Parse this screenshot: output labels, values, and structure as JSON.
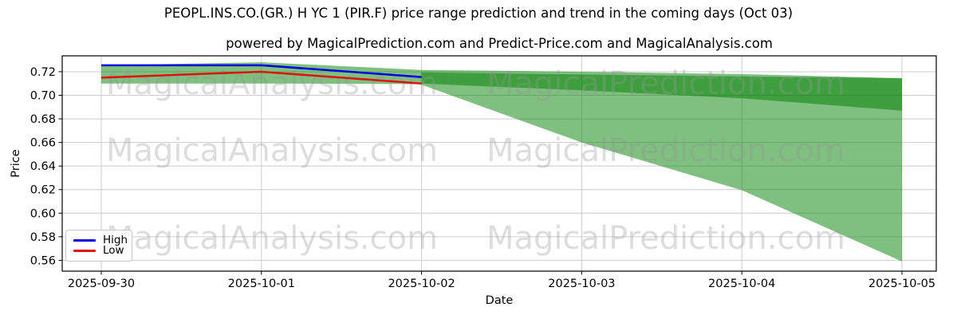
{
  "title": "PEOPL.INS.CO.(GR.) H YC 1 (PIR.F) price range prediction and trend in the coming days (Oct 03)",
  "subtitle": "powered by MagicalPrediction.com and Predict-Price.com and MagicalAnalysis.com",
  "watermarks": {
    "left_text": "MagicalAnalysis.com",
    "right_text": "MagicalPrediction.com"
  },
  "colors": {
    "grid": "#cccccc",
    "frame": "#000000",
    "band_fill": "rgba(0,128,0,0.5)",
    "band_light_result": "#80c080",
    "band_dark_result": "#40a040",
    "high_line": "#0000e0",
    "low_line": "#e01010",
    "watermark": "rgba(150,150,150,0.32)"
  },
  "legend": {
    "items": [
      {
        "label": "High",
        "color": "#0000e0"
      },
      {
        "label": "Low",
        "color": "#e01010"
      }
    ]
  },
  "chart_data": {
    "type": "line",
    "title": "PEOPL.INS.CO.(GR.) H YC 1 (PIR.F) price range prediction and trend in the coming days (Oct 03)",
    "xlabel": "Date",
    "ylabel": "Price",
    "x": [
      "2025-09-30",
      "2025-10-01",
      "2025-10-02",
      "2025-10-03",
      "2025-10-04",
      "2025-10-05"
    ],
    "yticks": [
      0.56,
      0.58,
      0.6,
      0.62,
      0.64,
      0.66,
      0.68,
      0.7,
      0.72
    ],
    "ylim": [
      0.5508,
      0.7335
    ],
    "grid": true,
    "legend_position": "lower left",
    "series": [
      {
        "name": "High",
        "color": "#0000e0",
        "x_indices": [
          0,
          1,
          2
        ],
        "values": [
          0.7255,
          0.7255,
          0.7155
        ]
      },
      {
        "name": "Low",
        "color": "#e01010",
        "x_indices": [
          0,
          1,
          2
        ],
        "values": [
          0.715,
          0.72,
          0.71
        ]
      }
    ],
    "bands": [
      {
        "name": "history-band",
        "x_indices": [
          0,
          1,
          2
        ],
        "top": [
          0.7255,
          0.728,
          0.7215
        ],
        "bottom": [
          0.71,
          0.71,
          0.7095
        ]
      },
      {
        "name": "forecast-outer-band",
        "x_indices": [
          2,
          3,
          4,
          5
        ],
        "top": [
          0.7215,
          0.72,
          0.718,
          0.7145
        ],
        "bottom": [
          0.709,
          0.66,
          0.6195,
          0.559
        ]
      },
      {
        "name": "forecast-inner-band",
        "x_indices": [
          2,
          3,
          4,
          5
        ],
        "top": [
          0.7195,
          0.7177,
          0.716,
          0.7145
        ],
        "bottom": [
          0.71,
          0.7042,
          0.6975,
          0.687
        ]
      }
    ]
  }
}
